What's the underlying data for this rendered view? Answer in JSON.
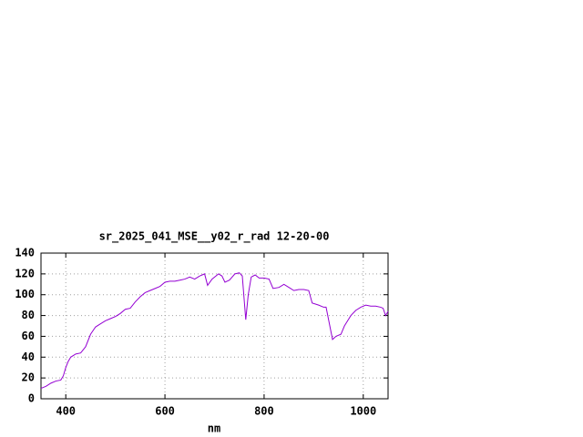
{
  "chart_data": {
    "type": "line",
    "title": "sr_2025_041_MSE__y02_r_rad 12-20-00",
    "x_label": "nm",
    "x": [
      350,
      360,
      370,
      380,
      390,
      395,
      400,
      405,
      410,
      420,
      430,
      440,
      450,
      460,
      470,
      480,
      490,
      500,
      510,
      520,
      530,
      540,
      550,
      560,
      570,
      580,
      590,
      600,
      610,
      620,
      630,
      640,
      650,
      660,
      670,
      680,
      686,
      695,
      708,
      715,
      721,
      730,
      741,
      750,
      756,
      763,
      768,
      774,
      782,
      790,
      800,
      810,
      818,
      830,
      840,
      850,
      860,
      870,
      880,
      890,
      897,
      910,
      920,
      925,
      938,
      945,
      955,
      962,
      975,
      985,
      995,
      1005,
      1015,
      1025,
      1035,
      1040,
      1045,
      1050
    ],
    "series": [
      {
        "name": "sr_2025_041_MSE__y02_r_rad",
        "color": "#9400d3",
        "values": [
          10,
          12,
          15,
          17,
          18,
          22,
          30,
          36,
          40,
          43,
          44,
          50,
          62,
          69,
          72,
          75,
          77,
          79,
          82,
          86,
          87,
          93,
          98,
          102,
          104,
          106,
          108,
          112,
          113,
          113,
          114,
          115,
          117,
          115,
          118,
          120,
          109,
          115,
          120,
          118,
          112,
          114,
          120,
          121,
          118,
          76,
          100,
          117,
          119,
          116,
          116,
          115,
          106,
          107,
          110,
          107,
          104,
          105,
          105,
          104,
          92,
          90,
          88,
          88,
          57,
          60,
          62,
          70,
          80,
          85,
          88,
          90,
          89,
          89,
          88,
          87,
          80,
          84
        ]
      }
    ],
    "xlim": [
      350,
      1050
    ],
    "ylim": [
      0,
      140
    ],
    "xticks": [
      400,
      600,
      800,
      1000
    ],
    "yticks": [
      0,
      20,
      40,
      60,
      80,
      100,
      120,
      140
    ],
    "grid": true
  }
}
